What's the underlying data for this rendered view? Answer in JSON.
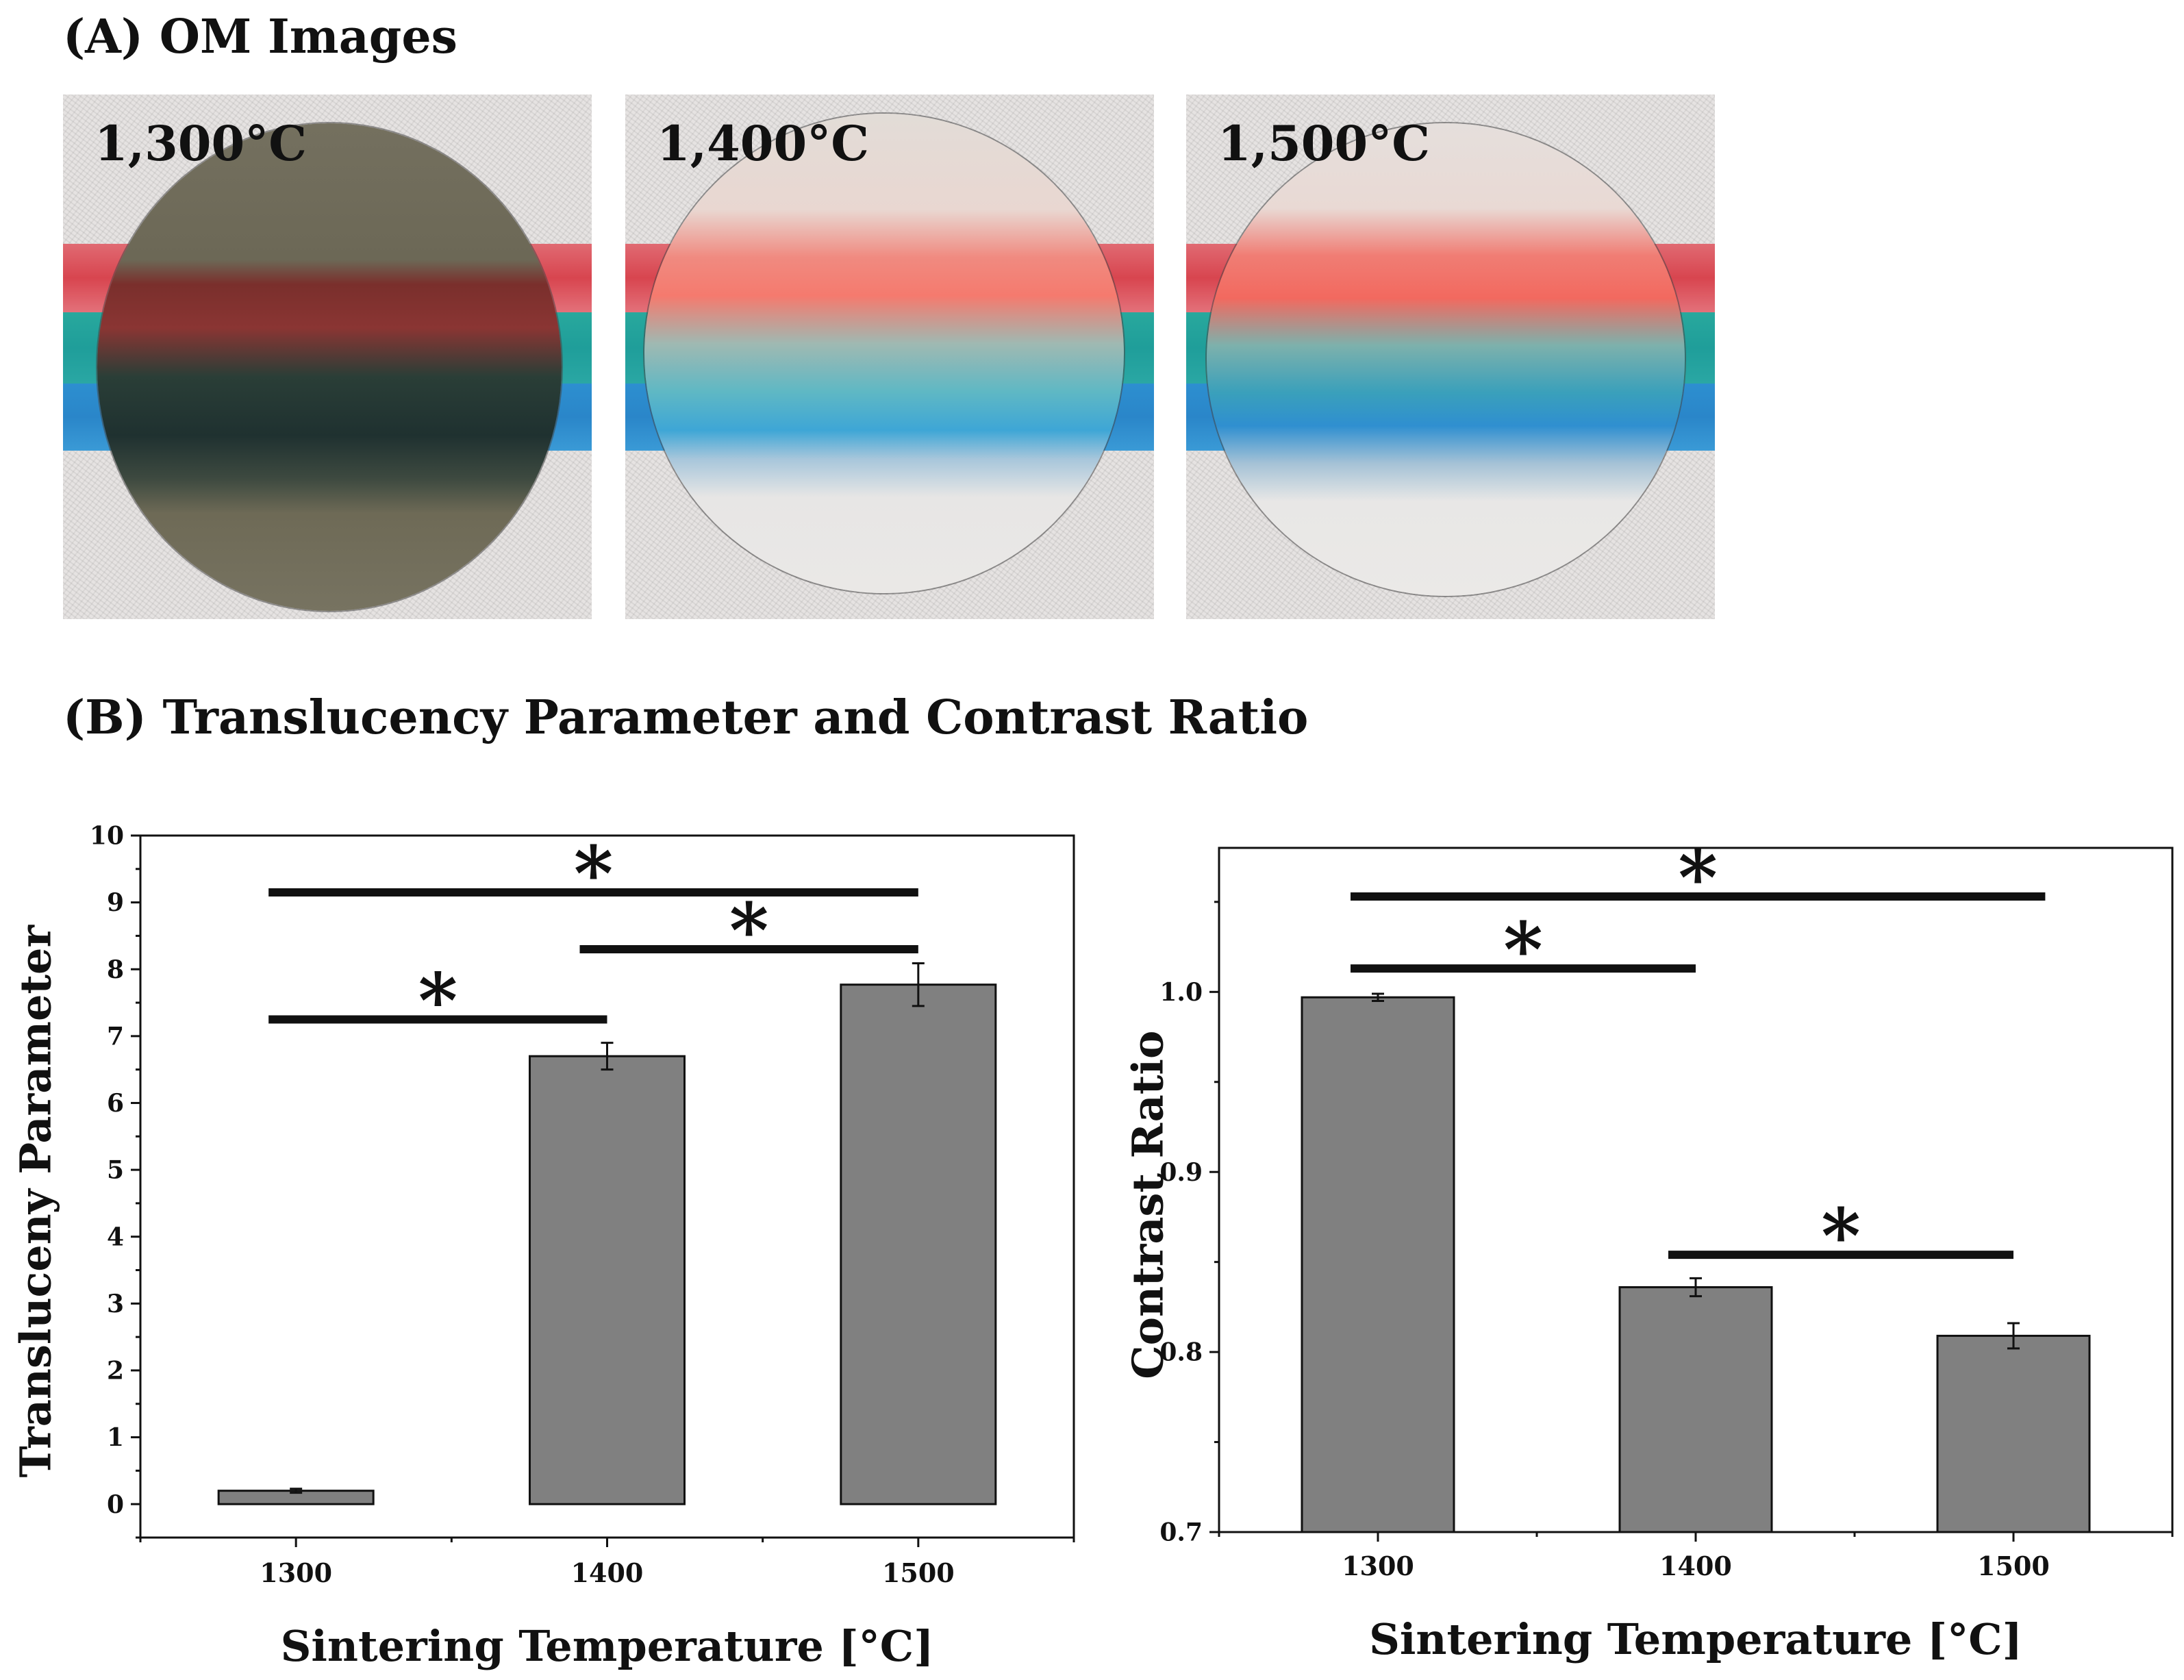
{
  "panel_a": {
    "title": "(A) OM Images",
    "images": [
      {
        "label": "1,300°C"
      },
      {
        "label": "1,400°C"
      },
      {
        "label": "1,500°C"
      }
    ]
  },
  "panel_b": {
    "title": "(B) Translucency Parameter and Contrast Ratio"
  },
  "chart_data": [
    {
      "type": "bar",
      "categories": [
        "1300",
        "1400",
        "1500"
      ],
      "x": [
        1300,
        1400,
        1500
      ],
      "values": [
        0.2,
        6.7,
        7.77
      ],
      "errors": [
        0.03,
        0.2,
        0.32
      ],
      "xlabel": "Sintering Temperature [°C]",
      "ylabel": "Transluceny Parameter",
      "xlim": [
        1250,
        1550
      ],
      "ylim": [
        -0.5,
        10
      ],
      "yticks": [
        "0",
        "1",
        "2",
        "3",
        "4",
        "5",
        "6",
        "7",
        "8",
        "9",
        "10"
      ],
      "significance": [
        {
          "from": 1300,
          "to": 1400,
          "y": 7.25,
          "label": "*"
        },
        {
          "from": 1400,
          "to": 1500,
          "y": 8.3,
          "label": "*"
        },
        {
          "from": 1300,
          "to": 1500,
          "y": 9.15,
          "label": "*"
        }
      ],
      "bar_color": "#808080",
      "grid": false
    },
    {
      "type": "bar",
      "categories": [
        "1300",
        "1400",
        "1500"
      ],
      "x": [
        1300,
        1400,
        1500
      ],
      "values": [
        0.997,
        0.836,
        0.809
      ],
      "errors": [
        0.002,
        0.005,
        0.007
      ],
      "xlabel": "Sintering Temperature [°C]",
      "ylabel": "Contrast Ratio",
      "xlim": [
        1250,
        1550
      ],
      "ylim": [
        0.7,
        1.08
      ],
      "yticks": [
        "0.7",
        "0.8",
        "0.9",
        "1.0"
      ],
      "significance": [
        {
          "from": 1300,
          "to": 1400,
          "y": 1.013,
          "label": "*"
        },
        {
          "from": 1300,
          "to": 1510,
          "y": 1.053,
          "label": "*"
        },
        {
          "from": 1400,
          "to": 1500,
          "y": 0.854,
          "label": "*"
        }
      ],
      "bar_color": "#808080",
      "grid": false
    }
  ]
}
